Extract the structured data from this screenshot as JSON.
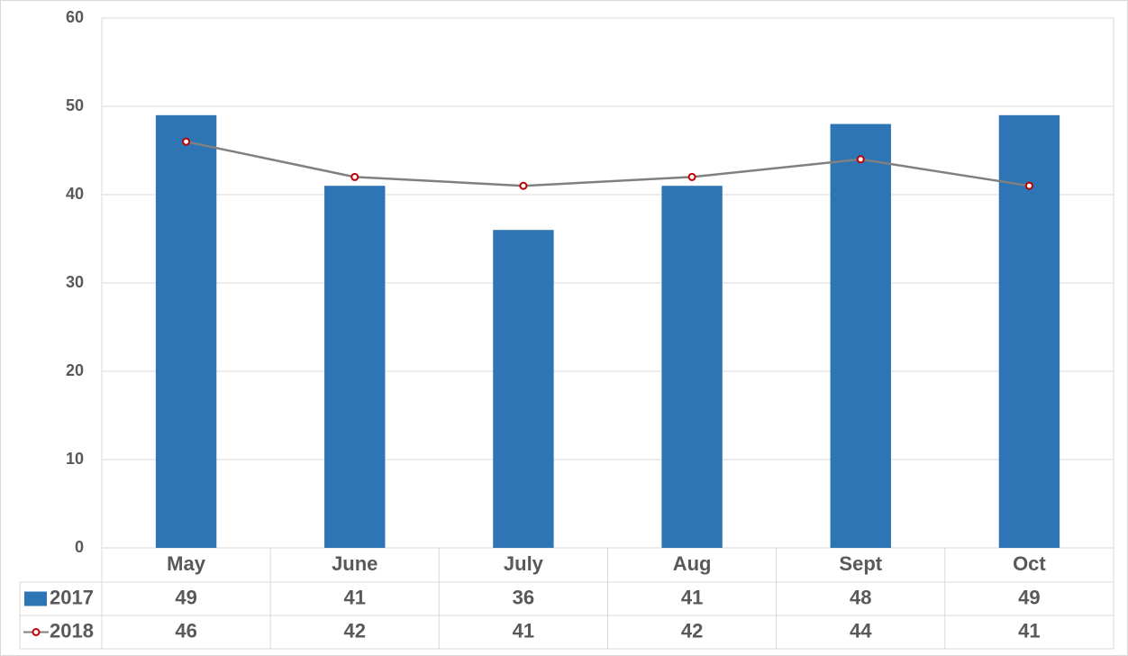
{
  "chart_data": {
    "type": "bar",
    "categories": [
      "May",
      "June",
      "July",
      "Aug",
      "Sept",
      "Oct"
    ],
    "series": [
      {
        "name": "2017",
        "type": "bar",
        "color": "#2e75b6",
        "values": [
          49,
          41,
          36,
          41,
          48,
          49
        ]
      },
      {
        "name": "2018",
        "type": "line",
        "color": "#808080",
        "marker_color": "#c00000",
        "values": [
          46,
          42,
          41,
          42,
          44,
          41
        ]
      }
    ],
    "ylim": [
      0,
      60
    ],
    "yticks": [
      0,
      10,
      20,
      30,
      40,
      50,
      60
    ],
    "grid": true
  }
}
